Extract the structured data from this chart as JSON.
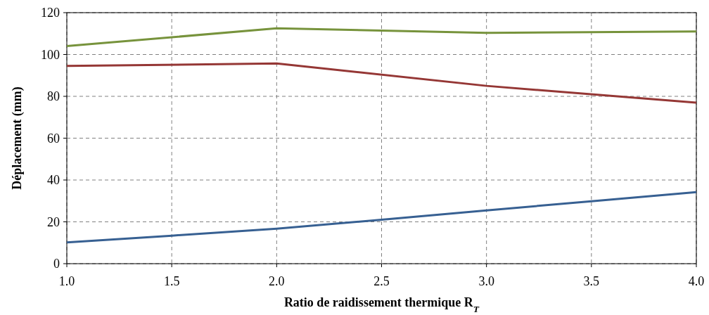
{
  "chart_data": {
    "type": "line",
    "xlabel": "Ratio de raidissement thermique R$_{T}$",
    "ylabel": "Déplacement  (mm)",
    "xlim": [
      1,
      4
    ],
    "xticks": [
      {
        "value": 1,
        "label": "1.0"
      },
      {
        "value": 1.5,
        "label": "1.5"
      },
      {
        "value": 2,
        "label": "2.0"
      },
      {
        "value": 2.5,
        "label": "2.5"
      },
      {
        "value": 3,
        "label": "3.0"
      },
      {
        "value": 3.5,
        "label": "3.5"
      },
      {
        "value": 4,
        "label": "4.0"
      }
    ],
    "ylim": [
      0,
      120
    ],
    "yticks": [
      0,
      20,
      40,
      60,
      80,
      100,
      120
    ],
    "grid": true,
    "line_style": "solid",
    "marker": "none",
    "series": [
      {
        "color": "#77933c",
        "x": [
          1,
          2,
          3,
          4
        ],
        "values": [
          104,
          112.5,
          110.3,
          111
        ]
      },
      {
        "color": "#953735",
        "x": [
          1,
          2,
          3,
          4
        ],
        "values": [
          94.5,
          95.7,
          85,
          77
        ]
      },
      {
        "color": "#376092",
        "x": [
          1,
          1.5,
          2,
          2.5,
          3,
          3.5,
          4
        ],
        "values": [
          10.2,
          13.4,
          16.7,
          21,
          25.5,
          29.8,
          34.2
        ]
      }
    ]
  }
}
